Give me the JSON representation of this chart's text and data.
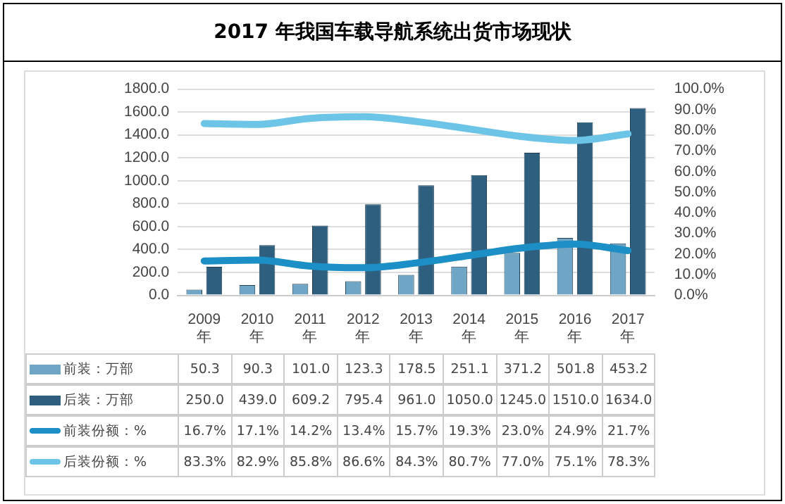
{
  "chart_data": {
    "type": "bar",
    "title": "2017 年我国车载导航系统出货市场现状",
    "categories": [
      "2009年",
      "2010年",
      "2011年",
      "2012年",
      "2013年",
      "2014年",
      "2015年",
      "2016年",
      "2017年"
    ],
    "series": [
      {
        "name": "前装：万部",
        "color": "#6fa6c6",
        "values": [
          50.3,
          90.3,
          101.0,
          123.3,
          178.5,
          251.1,
          371.2,
          501.8,
          453.2
        ],
        "value_labels": [
          "50.3",
          "90.3",
          "101.0",
          "123.3",
          "178.5",
          "251.1",
          "371.2",
          "501.8",
          "453.2"
        ]
      },
      {
        "name": "后装：万部",
        "color": "#2f5f7f",
        "values": [
          250.0,
          439.0,
          609.2,
          795.4,
          961.0,
          1050.0,
          1245.0,
          1510.0,
          1634.0
        ],
        "value_labels": [
          "250.0",
          "439.0",
          "609.2",
          "795.4",
          "961.0",
          "1050.0",
          "1245.0",
          "1510.0",
          "1634.0"
        ]
      },
      {
        "name": "前装份额：%",
        "type": "line",
        "axis": "y2",
        "color": "#1b8fc6",
        "values": [
          16.7,
          17.1,
          14.2,
          13.4,
          15.7,
          19.3,
          23.0,
          24.9,
          21.7
        ],
        "value_labels": [
          "16.7%",
          "17.1%",
          "14.2%",
          "13.4%",
          "15.7%",
          "19.3%",
          "23.0%",
          "24.9%",
          "21.7%"
        ]
      },
      {
        "name": "后装份额：%",
        "type": "line",
        "axis": "y2",
        "color": "#6cc4e6",
        "values": [
          83.3,
          82.9,
          85.8,
          86.6,
          84.3,
          80.7,
          77.0,
          75.1,
          78.3
        ],
        "value_labels": [
          "83.3%",
          "82.9%",
          "85.8%",
          "86.6%",
          "84.3%",
          "80.7%",
          "77.0%",
          "75.1%",
          "78.3%"
        ]
      }
    ],
    "ylim": [
      0,
      1800
    ],
    "yticks": [
      {
        "value": 0,
        "label": "0.0"
      },
      {
        "value": 200,
        "label": "200.0"
      },
      {
        "value": 400,
        "label": "400.0"
      },
      {
        "value": 600,
        "label": "600.0"
      },
      {
        "value": 800,
        "label": "800.0"
      },
      {
        "value": 1000,
        "label": "1000.0"
      },
      {
        "value": 1200,
        "label": "1200.0"
      },
      {
        "value": 1400,
        "label": "1400.0"
      },
      {
        "value": 1600,
        "label": "1600.0"
      },
      {
        "value": 1800,
        "label": "1800.0"
      }
    ],
    "y2lim": [
      0,
      100
    ],
    "y2ticks": [
      {
        "value": 0,
        "label": "0.0%"
      },
      {
        "value": 10,
        "label": "10.0%"
      },
      {
        "value": 20,
        "label": "20.0%"
      },
      {
        "value": 30,
        "label": "30.0%"
      },
      {
        "value": 40,
        "label": "40.0%"
      },
      {
        "value": 50,
        "label": "50.0%"
      },
      {
        "value": 60,
        "label": "60.0%"
      },
      {
        "value": 70,
        "label": "70.0%"
      },
      {
        "value": 80,
        "label": "80.0%"
      },
      {
        "value": 90,
        "label": "90.0%"
      },
      {
        "value": 100,
        "label": "100.0%"
      }
    ],
    "grid": "y",
    "marker": "none",
    "legend": "bottom",
    "data_labels": true
  }
}
